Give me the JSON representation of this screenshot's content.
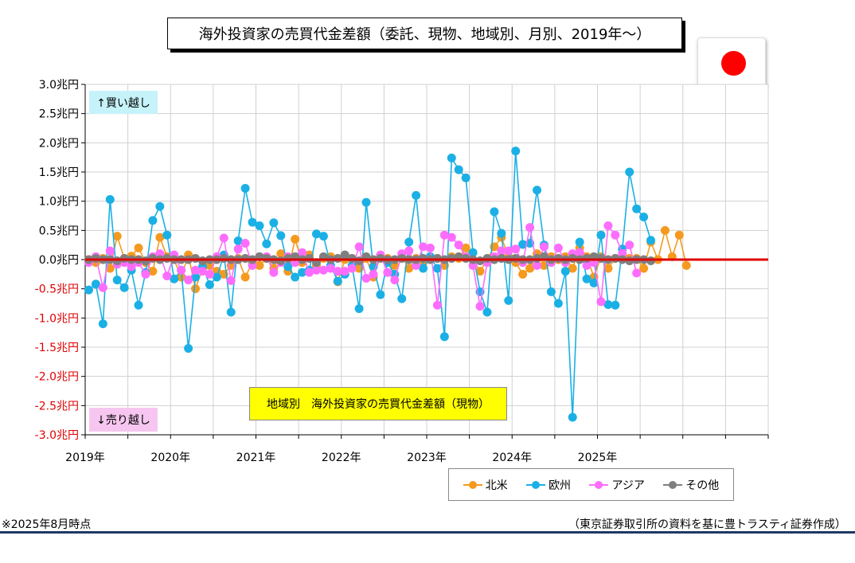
{
  "header": {
    "title": "海外投資家の売買代金差額（委託、現物、地域別、月別、2019年～）"
  },
  "flag": {
    "icon": "japan-flag-icon"
  },
  "annotations": {
    "buy": "↑買い越し",
    "sell": "↓売り越し",
    "inner_title": "地域別　海外投資家の売買代金差額（現物）"
  },
  "footer": {
    "note": "※2025年8月時点",
    "source": "（東京証券取引所の資料を基に豊トラスティ証券作成）"
  },
  "chart_data": {
    "type": "line",
    "title": "地域別　海外投資家の売買代金差額（現物）",
    "ylim": [
      -3.0,
      3.0
    ],
    "y_ticks": [
      {
        "v": 3.0,
        "label": "3.0兆円"
      },
      {
        "v": 2.5,
        "label": "2.5兆円"
      },
      {
        "v": 2.0,
        "label": "2.0兆円"
      },
      {
        "v": 1.5,
        "label": "1.5兆円"
      },
      {
        "v": 1.0,
        "label": "1.0兆円"
      },
      {
        "v": 0.5,
        "label": "0.5兆円"
      },
      {
        "v": 0.0,
        "label": "0.0兆円"
      },
      {
        "v": -0.5,
        "label": "-0.5兆円"
      },
      {
        "v": -1.0,
        "label": "-1.0兆円"
      },
      {
        "v": -1.5,
        "label": "-1.5兆円"
      },
      {
        "v": -2.0,
        "label": "-2.0兆円"
      },
      {
        "v": -2.5,
        "label": "-2.5兆円"
      },
      {
        "v": -3.0,
        "label": "-3.0兆円"
      }
    ],
    "x_labels": [
      "2019年",
      "2020年",
      "2021年",
      "2022年",
      "2023年",
      "2024年",
      "2025年"
    ],
    "x_range_months": 96,
    "grid": true,
    "zero_line_color": "#e00000",
    "legend_position": "bottom-right",
    "series": [
      {
        "name": "北米",
        "color": "#f59a1e",
        "values": [
          0.0,
          -0.05,
          0.02,
          -0.15,
          0.4,
          0.02,
          0.06,
          0.2,
          -0.05,
          -0.2,
          0.38,
          0.05,
          0.0,
          -0.3,
          0.08,
          -0.5,
          -0.15,
          -0.1,
          -0.2,
          -0.25,
          -0.1,
          0.02,
          -0.3,
          -0.05,
          -0.1,
          0.02,
          -0.15,
          0.1,
          -0.2,
          0.35,
          -0.05,
          0.08,
          -0.1,
          0.02,
          0.05,
          -0.38,
          0.0,
          0.02,
          -0.15,
          0.02,
          -0.3,
          0.05,
          0.02,
          -0.1,
          0.05,
          -0.15,
          0.02,
          -0.05,
          0.05,
          0.02,
          -0.1,
          0.05,
          0.02,
          0.2,
          0.0,
          -0.2,
          0.0,
          0.22,
          0.38,
          0.05,
          -0.05,
          -0.25,
          -0.15,
          0.1,
          -0.1,
          0.05,
          0.0,
          0.05,
          -0.15,
          0.2,
          0.05,
          -0.3,
          0.05,
          -0.15,
          0.02,
          0.05,
          0.02,
          0.02,
          -0.15,
          0.3,
          0.0,
          0.5,
          0.05,
          0.42,
          -0.1
        ]
      },
      {
        "name": "欧州",
        "color": "#1ab0e6",
        "values": [
          -0.52,
          -0.42,
          -1.1,
          1.03,
          -0.35,
          -0.48,
          -0.18,
          -0.78,
          -0.22,
          0.67,
          0.91,
          0.42,
          -0.33,
          -0.18,
          -1.52,
          -0.3,
          -0.12,
          -0.43,
          -0.3,
          0.08,
          -0.9,
          0.32,
          1.22,
          0.64,
          0.58,
          0.27,
          0.63,
          0.41,
          -0.12,
          -0.3,
          -0.22,
          -0.18,
          0.44,
          0.4,
          -0.1,
          -0.37,
          -0.25,
          -0.1,
          -0.84,
          0.98,
          -0.12,
          -0.6,
          -0.05,
          -0.25,
          -0.67,
          0.3,
          1.1,
          -0.15,
          0.05,
          -0.15,
          -1.32,
          1.74,
          1.54,
          1.4,
          0.12,
          -0.55,
          -0.9,
          0.82,
          0.45,
          -0.7,
          1.86,
          0.26,
          0.28,
          1.19,
          0.25,
          -0.55,
          -0.75,
          -0.2,
          -2.7,
          0.3,
          -0.33,
          -0.4,
          0.42,
          -0.77,
          -0.78,
          0.18,
          1.5,
          0.87,
          0.73,
          0.33
        ]
      },
      {
        "name": "アジア",
        "color": "#fd6dfd",
        "values": [
          -0.05,
          0.05,
          -0.48,
          0.15,
          -0.08,
          -0.05,
          -0.12,
          -0.05,
          -0.25,
          0.05,
          0.1,
          -0.28,
          0.08,
          -0.18,
          -0.35,
          -0.18,
          -0.2,
          -0.25,
          0.05,
          0.37,
          -0.36,
          0.18,
          0.28,
          -0.1,
          0.05,
          0.05,
          -0.22,
          -0.05,
          0.05,
          -0.05,
          0.12,
          -0.22,
          -0.18,
          -0.18,
          -0.15,
          -0.2,
          -0.2,
          -0.15,
          0.22,
          -0.32,
          -0.25,
          0.08,
          -0.22,
          -0.35,
          0.1,
          0.15,
          -0.1,
          0.22,
          0.2,
          -0.78,
          0.42,
          0.38,
          0.25,
          0.05,
          -0.1,
          -0.8,
          -0.05,
          0.05,
          0.15,
          0.15,
          0.18,
          -0.05,
          0.55,
          -0.1,
          0.22,
          -0.05,
          0.2,
          -0.05,
          0.1,
          0.12,
          -0.1,
          -0.05,
          -0.72,
          0.58,
          0.42,
          0.1,
          0.25,
          -0.23
        ]
      },
      {
        "name": "その他",
        "color": "#7f7f7f",
        "values": [
          0.0,
          0.02,
          0.0,
          0.0,
          -0.02,
          0.02,
          0.0,
          0.0,
          -0.02,
          0.02,
          0.0,
          0.02,
          0.0,
          0.0,
          0.0,
          0.02,
          -0.02,
          0.0,
          0.0,
          0.02,
          0.0,
          0.0,
          0.02,
          0.0,
          0.05,
          0.02,
          0.0,
          -0.02,
          0.02,
          0.05,
          0.0,
          0.02,
          -0.05,
          0.05,
          0.0,
          0.02,
          0.08,
          0.02,
          -0.02,
          0.05,
          0.0,
          0.02,
          0.0,
          0.0,
          0.02,
          0.0,
          0.0,
          0.02,
          0.0,
          0.02,
          0.0,
          0.02,
          0.05,
          0.02,
          0.0,
          -0.02,
          0.02,
          0.0,
          0.02,
          0.0,
          0.02,
          0.0,
          0.0,
          0.02,
          0.05,
          0.0,
          0.02,
          0.0,
          0.02,
          0.0,
          0.02,
          0.05,
          0.02,
          0.0,
          0.02,
          0.0,
          -0.02,
          0.0,
          0.0,
          -0.02
        ]
      }
    ]
  }
}
